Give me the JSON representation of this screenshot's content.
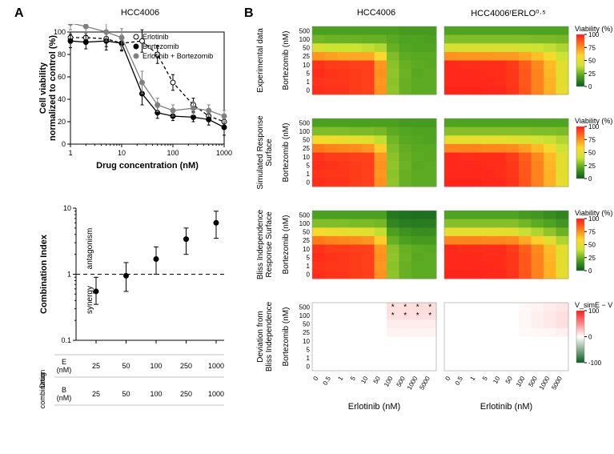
{
  "panel_A_label": "A",
  "panel_B_label": "B",
  "cell_lines": {
    "left": "HCC4006",
    "right": "HCC4006ʳERLO⁰·⁵"
  },
  "dose_response": {
    "type": "line+scatter",
    "xlabel": "Drug concentration (nM)",
    "ylabel": "Cell viability\nnormalized to control (%)",
    "xscale": "log",
    "xlim": [
      1,
      1000
    ],
    "xticks": [
      1,
      10,
      100,
      1000
    ],
    "ylim": [
      0,
      100
    ],
    "yticks": [
      0,
      20,
      40,
      60,
      80,
      100
    ],
    "background": "#ffffff",
    "axis_color": "#000000",
    "series": [
      {
        "name": "Erlotinib",
        "marker": "open-circle",
        "stroke": "#000000",
        "fill": "#ffffff",
        "dash": "4,3",
        "x": [
          1,
          2,
          5,
          10,
          25,
          50,
          100,
          250,
          500,
          1000
        ],
        "y": [
          95,
          95,
          94,
          90,
          92,
          80,
          55,
          35,
          25,
          20
        ],
        "err": [
          5,
          5,
          7,
          6,
          10,
          8,
          7,
          6,
          5,
          5
        ]
      },
      {
        "name": "Bortezomib",
        "marker": "circle",
        "stroke": "#000000",
        "fill": "#000000",
        "dash": "none",
        "x": [
          1,
          2,
          5,
          10,
          25,
          50,
          100,
          250,
          500,
          1000
        ],
        "y": [
          92,
          91,
          92,
          90,
          45,
          28,
          25,
          24,
          22,
          15
        ],
        "err": [
          6,
          6,
          8,
          7,
          10,
          5,
          4,
          4,
          5,
          7
        ]
      },
      {
        "name": "Erlotinib + Bortezomib",
        "marker": "circle",
        "stroke": "#808080",
        "fill": "#808080",
        "dash": "none",
        "x": [
          1,
          2,
          5,
          10,
          25,
          50,
          100,
          250,
          500,
          1000
        ],
        "y": [
          108,
          105,
          100,
          95,
          55,
          35,
          30,
          32,
          30,
          25
        ],
        "err": [
          6,
          6,
          8,
          8,
          10,
          6,
          5,
          6,
          5,
          5
        ]
      }
    ],
    "legend_pos": "top-right"
  },
  "combination_index": {
    "type": "errorbar",
    "ylabel": "Combination Index",
    "yscale": "log",
    "ylim": [
      0.1,
      10
    ],
    "yticks": [
      0.1,
      1,
      10
    ],
    "ref_line": 1,
    "ref_dash": "5,4",
    "annotations": {
      "top": "antagonism",
      "bottom": "synergy"
    },
    "x_categories": [
      "25",
      "50",
      "100",
      "250",
      "1000"
    ],
    "values": [
      0.55,
      0.95,
      1.7,
      3.4,
      6.0
    ],
    "err_low": [
      0.35,
      0.55,
      1.0,
      2.0,
      3.5
    ],
    "err_high": [
      0.9,
      1.5,
      2.6,
      5.0,
      9.0
    ],
    "marker_color": "#000000",
    "table": {
      "header": "Drug\ncombination",
      "rows": [
        {
          "label": "E\n(nM)",
          "cells": [
            "25",
            "50",
            "100",
            "250",
            "1000"
          ]
        },
        {
          "label": "B\n(nM)",
          "cells": [
            "25",
            "50",
            "100",
            "250",
            "1000"
          ]
        }
      ]
    }
  },
  "heatmaps": {
    "row_labels": [
      "Experimental data",
      "Simulated Response\nSurface",
      "Bliss Independence\nResponse Surface",
      "Deviation from\nBliss Independence"
    ],
    "x_ticks": [
      "0",
      "0.5",
      "1",
      "5",
      "10",
      "50",
      "100",
      "500",
      "1000",
      "5000"
    ],
    "y_ticks": [
      "0",
      "1",
      "5",
      "10",
      "25",
      "50",
      "100",
      "500"
    ],
    "x_axis_label": "Erlotinib (nM)",
    "y_axis_label": "Bortezomib (nM)",
    "viability_legend": {
      "title": "Viability (%)",
      "ticks": [
        0,
        25,
        50,
        75,
        100
      ],
      "stops": [
        "#0b5b1e",
        "#4ea320",
        "#cde334",
        "#ffd62b",
        "#ff7a1a",
        "#ff1a1a"
      ]
    },
    "deviation_legend": {
      "title": "V_simE − V_BI",
      "ticks": [
        -100,
        0,
        100
      ],
      "stops": [
        "#0b5b1e",
        "#ffffff",
        "#ff1a1a"
      ]
    },
    "grids": {
      "exp_left": [
        [
          96,
          95,
          95,
          93,
          92,
          75,
          38,
          30,
          28,
          28
        ],
        [
          95,
          94,
          94,
          93,
          92,
          74,
          37,
          30,
          28,
          28
        ],
        [
          96,
          95,
          94,
          93,
          92,
          75,
          38,
          31,
          27,
          28
        ],
        [
          95,
          93,
          93,
          92,
          92,
          74,
          37,
          30,
          28,
          27
        ],
        [
          74,
          72,
          70,
          70,
          70,
          60,
          35,
          28,
          27,
          27
        ],
        [
          52,
          50,
          50,
          50,
          48,
          45,
          30,
          26,
          25,
          25
        ],
        [
          32,
          31,
          31,
          31,
          30,
          30,
          27,
          25,
          25,
          24
        ],
        [
          24,
          24,
          24,
          24,
          24,
          24,
          24,
          22,
          22,
          22
        ]
      ],
      "exp_right": [
        [
          98,
          98,
          98,
          97,
          97,
          95,
          88,
          78,
          68,
          55
        ],
        [
          97,
          97,
          97,
          97,
          96,
          94,
          87,
          78,
          68,
          54
        ],
        [
          97,
          97,
          97,
          96,
          96,
          94,
          87,
          78,
          67,
          54
        ],
        [
          97,
          96,
          96,
          96,
          96,
          93,
          86,
          77,
          66,
          54
        ],
        [
          75,
          74,
          74,
          74,
          73,
          73,
          70,
          65,
          58,
          50
        ],
        [
          52,
          52,
          52,
          52,
          52,
          52,
          51,
          50,
          48,
          44
        ],
        [
          35,
          35,
          35,
          35,
          35,
          35,
          35,
          34,
          34,
          33
        ],
        [
          25,
          25,
          25,
          25,
          25,
          25,
          25,
          25,
          25,
          25
        ]
      ],
      "sim_left": [
        [
          96,
          95,
          95,
          93,
          92,
          75,
          38,
          30,
          28,
          28
        ],
        [
          95,
          94,
          94,
          93,
          92,
          74,
          37,
          30,
          28,
          28
        ],
        [
          96,
          95,
          94,
          93,
          92,
          75,
          38,
          31,
          27,
          28
        ],
        [
          95,
          93,
          93,
          92,
          92,
          74,
          37,
          30,
          28,
          27
        ],
        [
          80,
          78,
          77,
          76,
          74,
          62,
          35,
          29,
          27,
          27
        ],
        [
          58,
          57,
          56,
          55,
          54,
          48,
          32,
          27,
          26,
          25
        ],
        [
          35,
          35,
          35,
          34,
          34,
          33,
          28,
          26,
          25,
          25
        ],
        [
          24,
          24,
          24,
          24,
          24,
          24,
          24,
          22,
          22,
          22
        ]
      ],
      "sim_right": [
        [
          98,
          98,
          98,
          97,
          97,
          95,
          88,
          78,
          68,
          55
        ],
        [
          97,
          97,
          97,
          97,
          96,
          94,
          87,
          78,
          68,
          54
        ],
        [
          97,
          97,
          97,
          96,
          96,
          94,
          87,
          78,
          67,
          54
        ],
        [
          97,
          96,
          96,
          96,
          96,
          93,
          86,
          77,
          66,
          54
        ],
        [
          78,
          78,
          78,
          77,
          77,
          76,
          72,
          66,
          58,
          50
        ],
        [
          55,
          55,
          55,
          55,
          55,
          54,
          53,
          51,
          49,
          45
        ],
        [
          36,
          36,
          36,
          36,
          36,
          36,
          36,
          35,
          35,
          34
        ],
        [
          25,
          25,
          25,
          25,
          25,
          25,
          25,
          25,
          25,
          25
        ]
      ],
      "bliss_left": [
        [
          96,
          95,
          95,
          93,
          92,
          75,
          38,
          30,
          28,
          28
        ],
        [
          95,
          94,
          94,
          93,
          92,
          74,
          37,
          30,
          28,
          28
        ],
        [
          96,
          95,
          94,
          93,
          92,
          75,
          38,
          31,
          27,
          28
        ],
        [
          95,
          93,
          93,
          92,
          92,
          74,
          37,
          30,
          28,
          27
        ],
        [
          80,
          78,
          77,
          76,
          74,
          62,
          30,
          24,
          22,
          22
        ],
        [
          58,
          57,
          56,
          55,
          54,
          48,
          24,
          19,
          17,
          17
        ],
        [
          35,
          35,
          35,
          34,
          34,
          33,
          15,
          12,
          11,
          11
        ],
        [
          24,
          24,
          24,
          24,
          24,
          24,
          10,
          8,
          7,
          7
        ]
      ],
      "bliss_right": [
        [
          98,
          98,
          98,
          97,
          97,
          95,
          88,
          78,
          68,
          55
        ],
        [
          97,
          97,
          97,
          97,
          96,
          94,
          87,
          78,
          68,
          54
        ],
        [
          97,
          97,
          97,
          96,
          96,
          94,
          87,
          78,
          67,
          54
        ],
        [
          97,
          96,
          96,
          96,
          96,
          93,
          86,
          77,
          66,
          54
        ],
        [
          78,
          78,
          78,
          77,
          77,
          76,
          70,
          62,
          54,
          44
        ],
        [
          55,
          55,
          55,
          55,
          55,
          54,
          49,
          44,
          38,
          31
        ],
        [
          36,
          36,
          36,
          36,
          36,
          36,
          32,
          28,
          25,
          20
        ],
        [
          25,
          25,
          25,
          25,
          25,
          25,
          22,
          20,
          17,
          14
        ]
      ],
      "dev_left": [
        [
          0,
          0,
          0,
          0,
          0,
          0,
          0,
          0,
          0,
          0
        ],
        [
          0,
          0,
          0,
          0,
          0,
          0,
          0,
          0,
          0,
          0
        ],
        [
          0,
          0,
          0,
          0,
          0,
          0,
          0,
          0,
          0,
          0
        ],
        [
          0,
          0,
          0,
          0,
          0,
          0,
          0,
          0,
          0,
          0
        ],
        [
          0,
          0,
          0,
          0,
          0,
          0,
          5,
          5,
          5,
          5
        ],
        [
          0,
          0,
          0,
          0,
          0,
          0,
          8,
          8,
          8,
          8
        ],
        [
          0,
          0,
          0,
          0,
          0,
          0,
          13,
          14,
          14,
          14
        ],
        [
          0,
          0,
          0,
          0,
          0,
          0,
          14,
          14,
          15,
          15
        ]
      ],
      "dev_right": [
        [
          0,
          0,
          0,
          0,
          0,
          0,
          0,
          0,
          0,
          0
        ],
        [
          0,
          0,
          0,
          0,
          0,
          0,
          0,
          0,
          0,
          0
        ],
        [
          0,
          0,
          0,
          0,
          0,
          0,
          0,
          0,
          0,
          0
        ],
        [
          0,
          0,
          0,
          0,
          0,
          0,
          0,
          0,
          0,
          0
        ],
        [
          0,
          0,
          0,
          0,
          0,
          0,
          2,
          4,
          4,
          6
        ],
        [
          0,
          0,
          0,
          0,
          0,
          0,
          4,
          7,
          10,
          14
        ],
        [
          0,
          0,
          0,
          0,
          0,
          0,
          4,
          7,
          10,
          14
        ],
        [
          0,
          0,
          0,
          0,
          0,
          0,
          3,
          5,
          8,
          11
        ]
      ],
      "sig_left": [
        [
          0,
          0,
          0,
          0,
          0,
          0,
          0,
          0,
          0,
          0
        ],
        [
          0,
          0,
          0,
          0,
          0,
          0,
          0,
          0,
          0,
          0
        ],
        [
          0,
          0,
          0,
          0,
          0,
          0,
          0,
          0,
          0,
          0
        ],
        [
          0,
          0,
          0,
          0,
          0,
          0,
          0,
          0,
          0,
          0
        ],
        [
          0,
          0,
          0,
          0,
          0,
          0,
          0,
          0,
          0,
          0
        ],
        [
          0,
          0,
          0,
          0,
          0,
          0,
          0,
          0,
          0,
          0
        ],
        [
          0,
          0,
          0,
          0,
          0,
          0,
          1,
          1,
          1,
          1
        ],
        [
          0,
          0,
          0,
          0,
          0,
          0,
          1,
          1,
          1,
          1
        ]
      ]
    }
  }
}
